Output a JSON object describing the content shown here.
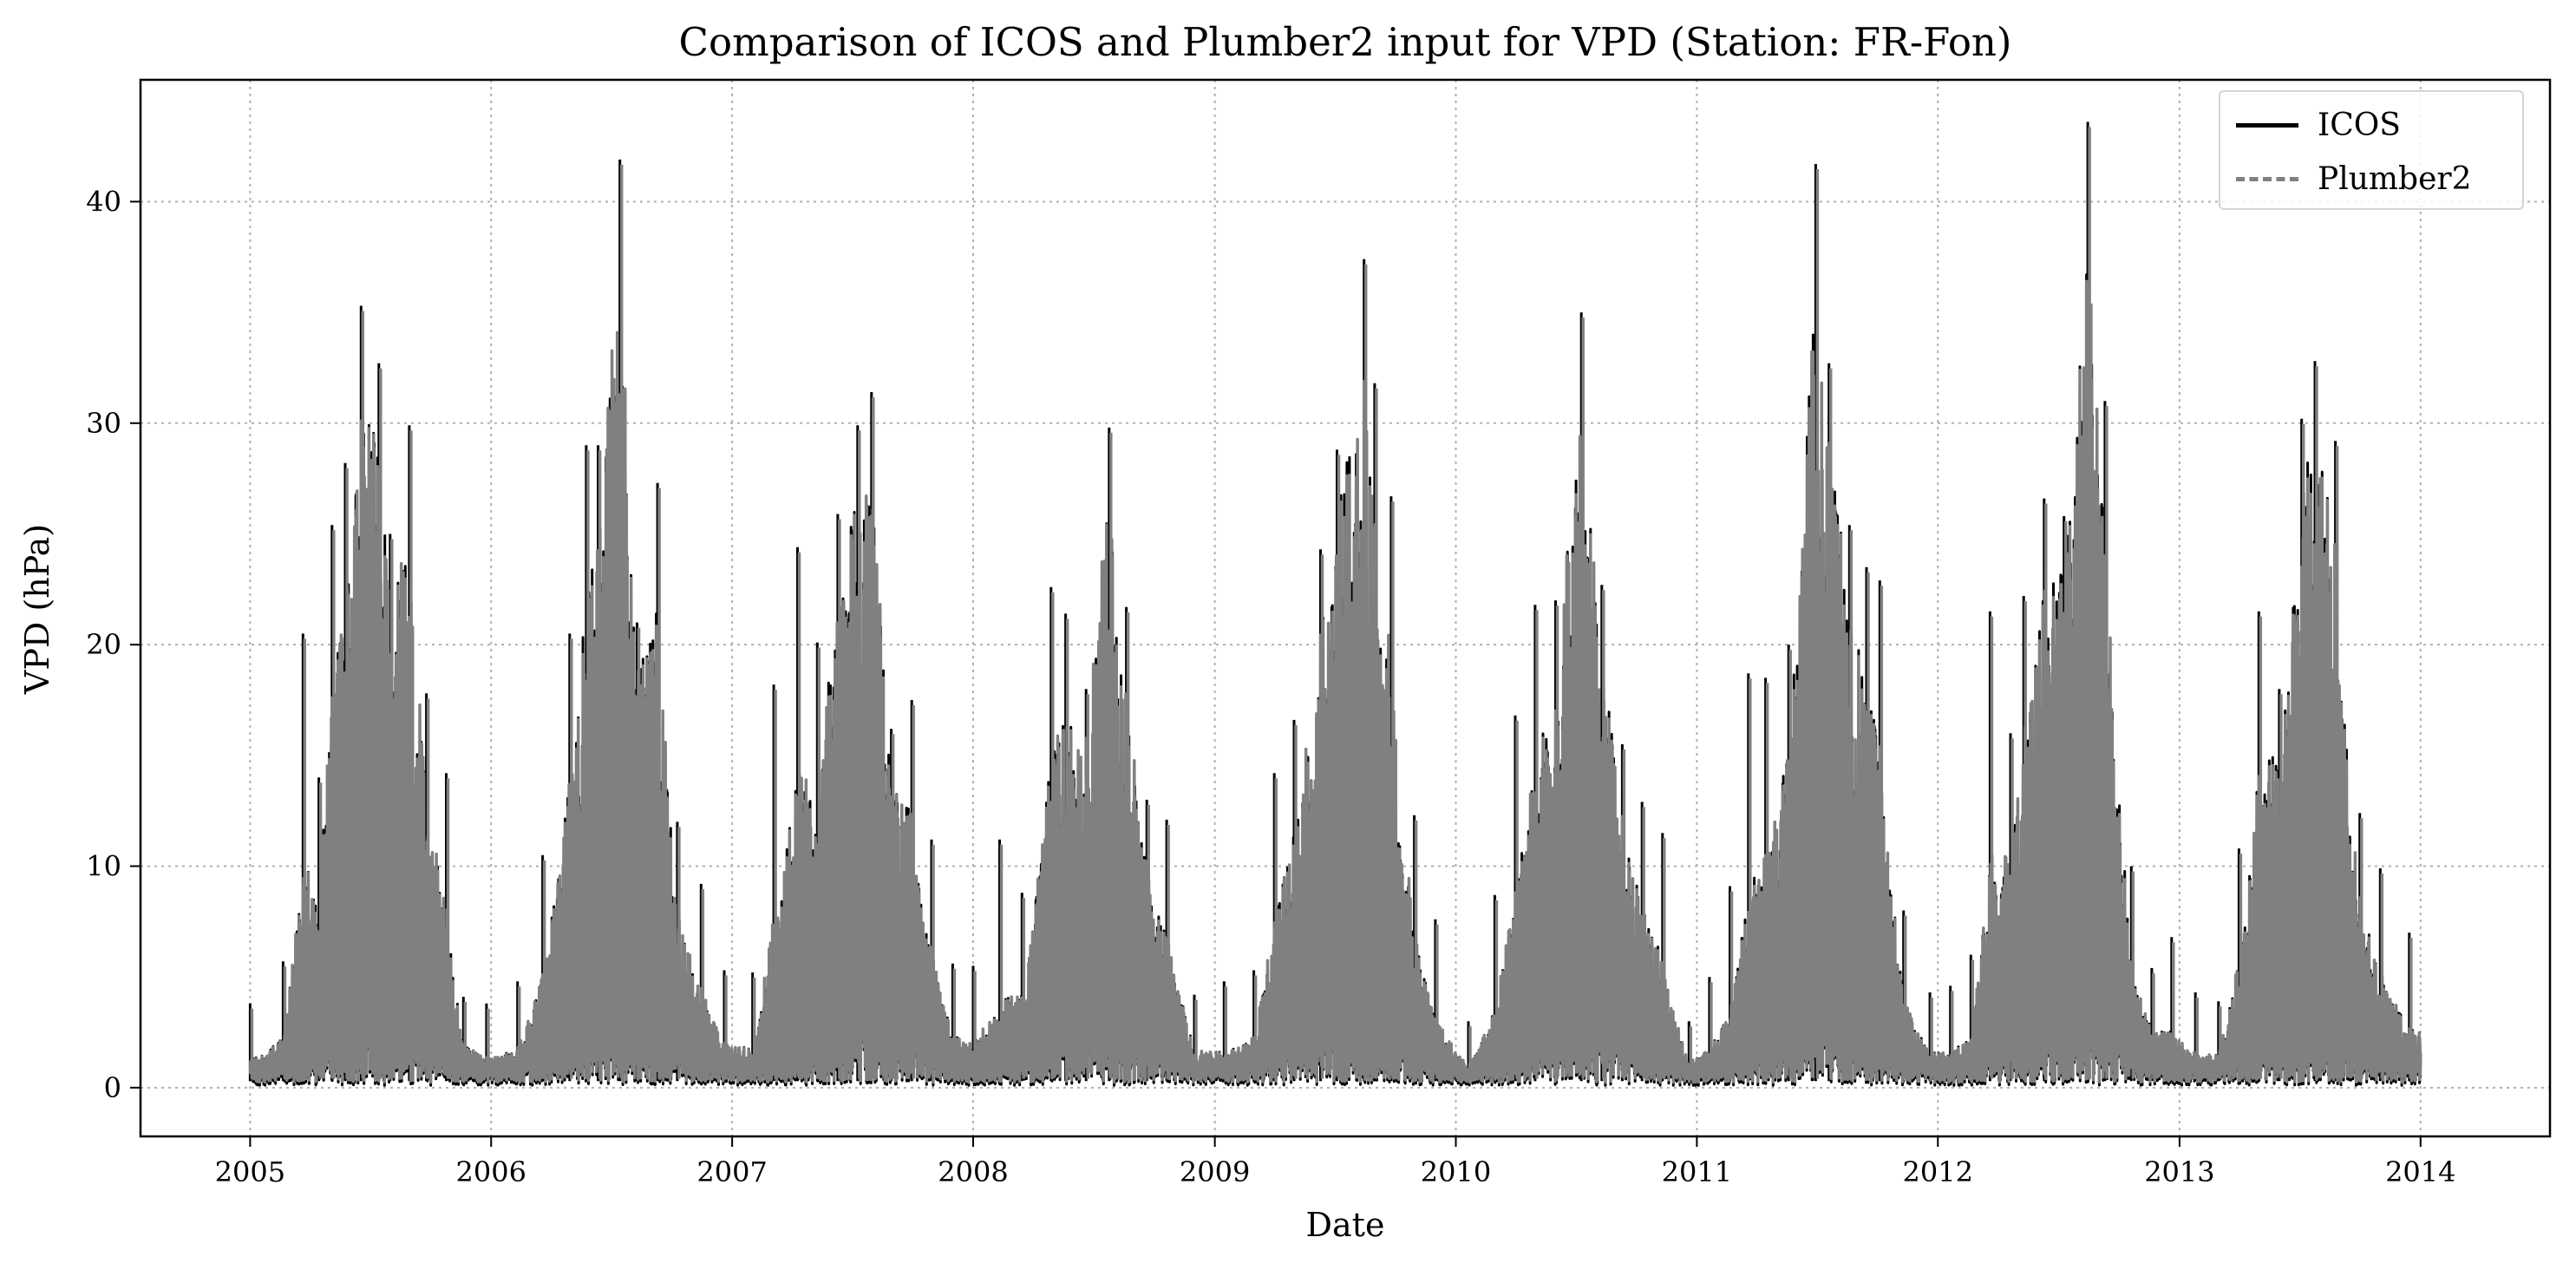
{
  "chart_data": {
    "type": "line",
    "title": "Comparison of ICOS and Plumber2 input for VPD (Station: FR-Fon)",
    "xlabel": "Date",
    "ylabel": "VPD (hPa)",
    "xlim": [
      "2004-07-19",
      "2014-07-16"
    ],
    "ylim": [
      -2.2,
      45.5
    ],
    "x_ticks": [
      "2005",
      "2006",
      "2007",
      "2008",
      "2009",
      "2010",
      "2011",
      "2012",
      "2013",
      "2014"
    ],
    "y_ticks": [
      0,
      10,
      20,
      30,
      40
    ],
    "grid": true,
    "legend_position": "top-right",
    "series": [
      {
        "name": "ICOS",
        "color": "#000000",
        "style": "solid"
      },
      {
        "name": "Plumber2",
        "color": "#808080",
        "style": "dashed"
      }
    ],
    "peak_points": [
      [
        "2005-01-01",
        3.8
      ],
      [
        "2005-02-20",
        5.7
      ],
      [
        "2005-03-22",
        20.5
      ],
      [
        "2005-04-15",
        14.0
      ],
      [
        "2005-05-05",
        25.4
      ],
      [
        "2005-05-25",
        28.2
      ],
      [
        "2005-06-18",
        35.3
      ],
      [
        "2005-07-15",
        32.7
      ],
      [
        "2005-08-01",
        25.0
      ],
      [
        "2005-08-30",
        29.9
      ],
      [
        "2005-09-25",
        17.8
      ],
      [
        "2005-10-25",
        14.2
      ],
      [
        "2005-11-20",
        4.1
      ],
      [
        "2005-12-25",
        3.8
      ],
      [
        "2006-02-10",
        4.8
      ],
      [
        "2006-03-20",
        10.5
      ],
      [
        "2006-04-30",
        20.5
      ],
      [
        "2006-05-25",
        29.0
      ],
      [
        "2006-06-12",
        29.0
      ],
      [
        "2006-07-15",
        41.9
      ],
      [
        "2006-08-10",
        21.0
      ],
      [
        "2006-09-10",
        27.3
      ],
      [
        "2006-10-10",
        12.0
      ],
      [
        "2006-11-15",
        9.2
      ],
      [
        "2006-12-20",
        5.3
      ],
      [
        "2007-02-01",
        5.2
      ],
      [
        "2007-03-05",
        18.2
      ],
      [
        "2007-04-10",
        24.4
      ],
      [
        "2007-05-10",
        20.1
      ],
      [
        "2007-06-10",
        25.9
      ],
      [
        "2007-07-10",
        29.9
      ],
      [
        "2007-07-31",
        31.4
      ],
      [
        "2007-08-30",
        16.2
      ],
      [
        "2007-09-30",
        17.5
      ],
      [
        "2007-10-30",
        11.2
      ],
      [
        "2007-12-01",
        5.6
      ],
      [
        "2008-01-01",
        5.5
      ],
      [
        "2008-02-10",
        11.2
      ],
      [
        "2008-03-15",
        8.8
      ],
      [
        "2008-04-28",
        22.6
      ],
      [
        "2008-05-20",
        21.4
      ],
      [
        "2008-06-20",
        18.0
      ],
      [
        "2008-07-25",
        29.8
      ],
      [
        "2008-08-20",
        21.7
      ],
      [
        "2008-09-20",
        13.0
      ],
      [
        "2008-10-20",
        12.1
      ],
      [
        "2008-12-01",
        4.2
      ],
      [
        "2009-01-15",
        4.8
      ],
      [
        "2009-03-01",
        5.3
      ],
      [
        "2009-04-01",
        14.2
      ],
      [
        "2009-05-01",
        16.6
      ],
      [
        "2009-06-10",
        24.3
      ],
      [
        "2009-07-05",
        28.8
      ],
      [
        "2009-08-15",
        37.4
      ],
      [
        "2009-08-31",
        31.8
      ],
      [
        "2009-09-25",
        26.7
      ],
      [
        "2009-10-30",
        12.3
      ],
      [
        "2009-12-01",
        7.6
      ],
      [
        "2010-01-20",
        3.0
      ],
      [
        "2010-03-01",
        8.7
      ],
      [
        "2010-04-01",
        16.8
      ],
      [
        "2010-05-01",
        21.8
      ],
      [
        "2010-06-01",
        22.0
      ],
      [
        "2010-07-10",
        35.0
      ],
      [
        "2010-08-10",
        22.7
      ],
      [
        "2010-09-10",
        15.5
      ],
      [
        "2010-10-10",
        12.9
      ],
      [
        "2010-11-10",
        11.5
      ],
      [
        "2010-12-20",
        3.0
      ],
      [
        "2011-01-20",
        5.0
      ],
      [
        "2011-02-20",
        9.1
      ],
      [
        "2011-03-20",
        18.7
      ],
      [
        "2011-04-15",
        18.5
      ],
      [
        "2011-05-20",
        20.0
      ],
      [
        "2011-06-30",
        41.7
      ],
      [
        "2011-07-20",
        32.7
      ],
      [
        "2011-08-20",
        25.4
      ],
      [
        "2011-09-15",
        23.5
      ],
      [
        "2011-10-05",
        22.9
      ],
      [
        "2011-11-10",
        8.0
      ],
      [
        "2011-12-20",
        4.3
      ],
      [
        "2012-01-20",
        4.6
      ],
      [
        "2012-02-20",
        6.0
      ],
      [
        "2012-03-20",
        21.5
      ],
      [
        "2012-04-20",
        16.0
      ],
      [
        "2012-05-10",
        22.2
      ],
      [
        "2012-06-10",
        26.6
      ],
      [
        "2012-07-10",
        25.8
      ],
      [
        "2012-08-15",
        43.6
      ],
      [
        "2012-09-10",
        31.0
      ],
      [
        "2012-10-20",
        10.0
      ],
      [
        "2012-11-20",
        5.4
      ],
      [
        "2012-12-20",
        6.8
      ],
      [
        "2013-01-25",
        4.3
      ],
      [
        "2013-03-01",
        3.9
      ],
      [
        "2013-04-01",
        10.8
      ],
      [
        "2013-05-01",
        21.5
      ],
      [
        "2013-06-01",
        18.0
      ],
      [
        "2013-07-05",
        30.2
      ],
      [
        "2013-07-25",
        32.8
      ],
      [
        "2013-08-25",
        29.2
      ],
      [
        "2013-10-01",
        12.4
      ],
      [
        "2013-11-01",
        9.9
      ],
      [
        "2013-12-15",
        7.0
      ]
    ],
    "baseline_min": 0.1
  }
}
